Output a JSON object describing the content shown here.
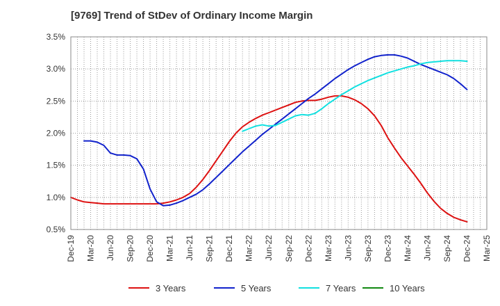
{
  "chart_data": {
    "type": "line",
    "title": "[9769]  Trend of StDev of Ordinary Income Margin",
    "xlabel": "",
    "ylabel": "",
    "ylim": [
      0.5,
      3.5
    ],
    "y_ticks": [
      0.5,
      1.0,
      1.5,
      2.0,
      2.5,
      3.0,
      3.5
    ],
    "y_tick_labels": [
      "0.5%",
      "1.0%",
      "1.5%",
      "2.0%",
      "2.5%",
      "3.0%",
      "3.5%"
    ],
    "x_tick_labels": [
      "Dec-19",
      "Mar-20",
      "Jun-20",
      "Sep-20",
      "Dec-20",
      "Mar-21",
      "Jun-21",
      "Sep-21",
      "Dec-21",
      "Mar-22",
      "Jun-22",
      "Sep-22",
      "Dec-22",
      "Mar-23",
      "Jun-23",
      "Sep-23",
      "Dec-23",
      "Mar-24",
      "Jun-24",
      "Sep-24",
      "Dec-24",
      "Mar-25"
    ],
    "grid": true,
    "legend_position": "bottom",
    "series": [
      {
        "name": "3 Years",
        "color": "#dd1111",
        "values": [
          {
            "x": "2019-12",
            "y": 1.0
          },
          {
            "x": "2020-01",
            "y": 0.96
          },
          {
            "x": "2020-02",
            "y": 0.93
          },
          {
            "x": "2020-03",
            "y": 0.92
          },
          {
            "x": "2020-04",
            "y": 0.91
          },
          {
            "x": "2020-05",
            "y": 0.9
          },
          {
            "x": "2020-06",
            "y": 0.9
          },
          {
            "x": "2020-07",
            "y": 0.9
          },
          {
            "x": "2020-08",
            "y": 0.9
          },
          {
            "x": "2020-09",
            "y": 0.9
          },
          {
            "x": "2020-10",
            "y": 0.9
          },
          {
            "x": "2020-11",
            "y": 0.9
          },
          {
            "x": "2020-12",
            "y": 0.9
          },
          {
            "x": "2021-01",
            "y": 0.9
          },
          {
            "x": "2021-02",
            "y": 0.91
          },
          {
            "x": "2021-03",
            "y": 0.93
          },
          {
            "x": "2021-04",
            "y": 0.96
          },
          {
            "x": "2021-05",
            "y": 1.0
          },
          {
            "x": "2021-06",
            "y": 1.06
          },
          {
            "x": "2021-07",
            "y": 1.16
          },
          {
            "x": "2021-08",
            "y": 1.28
          },
          {
            "x": "2021-09",
            "y": 1.42
          },
          {
            "x": "2021-10",
            "y": 1.57
          },
          {
            "x": "2021-11",
            "y": 1.72
          },
          {
            "x": "2021-12",
            "y": 1.87
          },
          {
            "x": "2022-01",
            "y": 2.0
          },
          {
            "x": "2022-02",
            "y": 2.1
          },
          {
            "x": "2022-03",
            "y": 2.17
          },
          {
            "x": "2022-04",
            "y": 2.23
          },
          {
            "x": "2022-05",
            "y": 2.28
          },
          {
            "x": "2022-06",
            "y": 2.32
          },
          {
            "x": "2022-07",
            "y": 2.36
          },
          {
            "x": "2022-08",
            "y": 2.4
          },
          {
            "x": "2022-09",
            "y": 2.44
          },
          {
            "x": "2022-10",
            "y": 2.48
          },
          {
            "x": "2022-11",
            "y": 2.5
          },
          {
            "x": "2022-12",
            "y": 2.51
          },
          {
            "x": "2023-01",
            "y": 2.51
          },
          {
            "x": "2023-02",
            "y": 2.53
          },
          {
            "x": "2023-03",
            "y": 2.56
          },
          {
            "x": "2023-04",
            "y": 2.58
          },
          {
            "x": "2023-05",
            "y": 2.58
          },
          {
            "x": "2023-06",
            "y": 2.56
          },
          {
            "x": "2023-07",
            "y": 2.52
          },
          {
            "x": "2023-08",
            "y": 2.46
          },
          {
            "x": "2023-09",
            "y": 2.38
          },
          {
            "x": "2023-10",
            "y": 2.27
          },
          {
            "x": "2023-11",
            "y": 2.12
          },
          {
            "x": "2023-12",
            "y": 1.93
          },
          {
            "x": "2024-01",
            "y": 1.77
          },
          {
            "x": "2024-02",
            "y": 1.62
          },
          {
            "x": "2024-03",
            "y": 1.49
          },
          {
            "x": "2024-04",
            "y": 1.36
          },
          {
            "x": "2024-05",
            "y": 1.22
          },
          {
            "x": "2024-06",
            "y": 1.07
          },
          {
            "x": "2024-07",
            "y": 0.94
          },
          {
            "x": "2024-08",
            "y": 0.83
          },
          {
            "x": "2024-09",
            "y": 0.75
          },
          {
            "x": "2024-10",
            "y": 0.69
          },
          {
            "x": "2024-11",
            "y": 0.65
          },
          {
            "x": "2024-12",
            "y": 0.62
          }
        ]
      },
      {
        "name": "5 Years",
        "color": "#1122cc",
        "values": [
          {
            "x": "2020-02",
            "y": 1.88
          },
          {
            "x": "2020-03",
            "y": 1.88
          },
          {
            "x": "2020-04",
            "y": 1.86
          },
          {
            "x": "2020-05",
            "y": 1.81
          },
          {
            "x": "2020-06",
            "y": 1.69
          },
          {
            "x": "2020-07",
            "y": 1.66
          },
          {
            "x": "2020-08",
            "y": 1.66
          },
          {
            "x": "2020-09",
            "y": 1.65
          },
          {
            "x": "2020-10",
            "y": 1.6
          },
          {
            "x": "2020-11",
            "y": 1.44
          },
          {
            "x": "2020-12",
            "y": 1.13
          },
          {
            "x": "2021-01",
            "y": 0.93
          },
          {
            "x": "2021-02",
            "y": 0.87
          },
          {
            "x": "2021-03",
            "y": 0.88
          },
          {
            "x": "2021-04",
            "y": 0.91
          },
          {
            "x": "2021-05",
            "y": 0.95
          },
          {
            "x": "2021-06",
            "y": 1.0
          },
          {
            "x": "2021-07",
            "y": 1.05
          },
          {
            "x": "2021-08",
            "y": 1.12
          },
          {
            "x": "2021-09",
            "y": 1.21
          },
          {
            "x": "2021-10",
            "y": 1.31
          },
          {
            "x": "2021-11",
            "y": 1.41
          },
          {
            "x": "2021-12",
            "y": 1.51
          },
          {
            "x": "2022-01",
            "y": 1.61
          },
          {
            "x": "2022-02",
            "y": 1.71
          },
          {
            "x": "2022-03",
            "y": 1.8
          },
          {
            "x": "2022-04",
            "y": 1.89
          },
          {
            "x": "2022-05",
            "y": 1.98
          },
          {
            "x": "2022-06",
            "y": 2.06
          },
          {
            "x": "2022-07",
            "y": 2.14
          },
          {
            "x": "2022-08",
            "y": 2.22
          },
          {
            "x": "2022-09",
            "y": 2.3
          },
          {
            "x": "2022-10",
            "y": 2.38
          },
          {
            "x": "2022-11",
            "y": 2.46
          },
          {
            "x": "2022-12",
            "y": 2.54
          },
          {
            "x": "2023-01",
            "y": 2.61
          },
          {
            "x": "2023-02",
            "y": 2.69
          },
          {
            "x": "2023-03",
            "y": 2.77
          },
          {
            "x": "2023-04",
            "y": 2.85
          },
          {
            "x": "2023-05",
            "y": 2.92
          },
          {
            "x": "2023-06",
            "y": 2.99
          },
          {
            "x": "2023-07",
            "y": 3.05
          },
          {
            "x": "2023-08",
            "y": 3.1
          },
          {
            "x": "2023-09",
            "y": 3.15
          },
          {
            "x": "2023-10",
            "y": 3.19
          },
          {
            "x": "2023-11",
            "y": 3.21
          },
          {
            "x": "2023-12",
            "y": 3.22
          },
          {
            "x": "2024-01",
            "y": 3.22
          },
          {
            "x": "2024-02",
            "y": 3.2
          },
          {
            "x": "2024-03",
            "y": 3.17
          },
          {
            "x": "2024-04",
            "y": 3.12
          },
          {
            "x": "2024-05",
            "y": 3.07
          },
          {
            "x": "2024-06",
            "y": 3.03
          },
          {
            "x": "2024-07",
            "y": 2.99
          },
          {
            "x": "2024-08",
            "y": 2.95
          },
          {
            "x": "2024-09",
            "y": 2.91
          },
          {
            "x": "2024-10",
            "y": 2.85
          },
          {
            "x": "2024-11",
            "y": 2.77
          },
          {
            "x": "2024-12",
            "y": 2.68
          }
        ]
      },
      {
        "name": "7 Years",
        "color": "#11e0e0",
        "values": [
          {
            "x": "2022-02",
            "y": 2.03
          },
          {
            "x": "2022-03",
            "y": 2.07
          },
          {
            "x": "2022-04",
            "y": 2.11
          },
          {
            "x": "2022-05",
            "y": 2.13
          },
          {
            "x": "2022-06",
            "y": 2.11
          },
          {
            "x": "2022-07",
            "y": 2.12
          },
          {
            "x": "2022-08",
            "y": 2.17
          },
          {
            "x": "2022-09",
            "y": 2.22
          },
          {
            "x": "2022-10",
            "y": 2.27
          },
          {
            "x": "2022-11",
            "y": 2.29
          },
          {
            "x": "2022-12",
            "y": 2.28
          },
          {
            "x": "2023-01",
            "y": 2.31
          },
          {
            "x": "2023-02",
            "y": 2.38
          },
          {
            "x": "2023-03",
            "y": 2.46
          },
          {
            "x": "2023-04",
            "y": 2.53
          },
          {
            "x": "2023-05",
            "y": 2.6
          },
          {
            "x": "2023-06",
            "y": 2.66
          },
          {
            "x": "2023-07",
            "y": 2.72
          },
          {
            "x": "2023-08",
            "y": 2.77
          },
          {
            "x": "2023-09",
            "y": 2.82
          },
          {
            "x": "2023-10",
            "y": 2.86
          },
          {
            "x": "2023-11",
            "y": 2.9
          },
          {
            "x": "2023-12",
            "y": 2.94
          },
          {
            "x": "2024-01",
            "y": 2.97
          },
          {
            "x": "2024-02",
            "y": 3.0
          },
          {
            "x": "2024-03",
            "y": 3.03
          },
          {
            "x": "2024-04",
            "y": 3.05
          },
          {
            "x": "2024-05",
            "y": 3.08
          },
          {
            "x": "2024-06",
            "y": 3.1
          },
          {
            "x": "2024-07",
            "y": 3.11
          },
          {
            "x": "2024-08",
            "y": 3.12
          },
          {
            "x": "2024-09",
            "y": 3.13
          },
          {
            "x": "2024-10",
            "y": 3.13
          },
          {
            "x": "2024-11",
            "y": 3.13
          },
          {
            "x": "2024-12",
            "y": 3.12
          }
        ]
      },
      {
        "name": "10 Years",
        "color": "#118811",
        "values": []
      }
    ]
  }
}
